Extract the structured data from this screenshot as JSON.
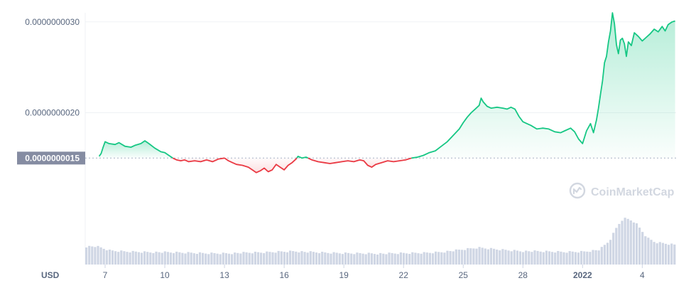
{
  "chart_data": {
    "type": "area",
    "currency_label": "USD",
    "watermark": "CoinMarketCap",
    "baseline_label": "0.0000000015",
    "baseline_value": 1.5e-09,
    "y_ticks": [
      {
        "label": "0.0000000030",
        "value": 3e-09
      },
      {
        "label": "0.0000000020",
        "value": 2e-09
      }
    ],
    "ylim": [
      5e-10,
      3.1e-09
    ],
    "x_ticks": [
      {
        "label": "7",
        "pos": 1.0
      },
      {
        "label": "10",
        "pos": 4.0
      },
      {
        "label": "13",
        "pos": 7.0
      },
      {
        "label": "16",
        "pos": 10.0
      },
      {
        "label": "19",
        "pos": 13.0
      },
      {
        "label": "22",
        "pos": 16.0
      },
      {
        "label": "25",
        "pos": 19.0
      },
      {
        "label": "28",
        "pos": 22.0
      },
      {
        "label": "2022",
        "pos": 25.0,
        "bold": true
      },
      {
        "label": "4",
        "pos": 28.0
      }
    ],
    "xlim": [
      0.0,
      29.7
    ],
    "colors": {
      "up": "#16c784",
      "down": "#ea3943",
      "volume": "#cfd6e4",
      "grid": "#eff2f5",
      "axis_text": "#58667e",
      "baseline_box": "#858ca2"
    },
    "series": [
      {
        "values": [
          [
            0.7,
            1.52e-09
          ],
          [
            0.8,
            1.55e-09
          ],
          [
            0.9,
            1.62e-09
          ],
          [
            1.0,
            1.68e-09
          ],
          [
            1.2,
            1.66e-09
          ],
          [
            1.5,
            1.65e-09
          ],
          [
            1.7,
            1.67e-09
          ],
          [
            2.0,
            1.63e-09
          ],
          [
            2.3,
            1.62e-09
          ],
          [
            2.5,
            1.64e-09
          ],
          [
            2.8,
            1.66e-09
          ],
          [
            3.0,
            1.69e-09
          ],
          [
            3.2,
            1.66e-09
          ],
          [
            3.5,
            1.61e-09
          ],
          [
            3.8,
            1.57e-09
          ],
          [
            4.0,
            1.56e-09
          ],
          [
            4.2,
            1.53e-09
          ],
          [
            4.4,
            1.5e-09
          ],
          [
            4.6,
            1.48e-09
          ],
          [
            4.8,
            1.47e-09
          ],
          [
            5.0,
            1.48e-09
          ],
          [
            5.2,
            1.46e-09
          ],
          [
            5.5,
            1.47e-09
          ],
          [
            5.8,
            1.46e-09
          ],
          [
            6.1,
            1.48e-09
          ],
          [
            6.4,
            1.46e-09
          ],
          [
            6.7,
            1.49e-09
          ],
          [
            7.0,
            1.5e-09
          ],
          [
            7.2,
            1.47e-09
          ],
          [
            7.4,
            1.45e-09
          ],
          [
            7.6,
            1.43e-09
          ],
          [
            7.9,
            1.42e-09
          ],
          [
            8.2,
            1.4e-09
          ],
          [
            8.4,
            1.37e-09
          ],
          [
            8.6,
            1.34e-09
          ],
          [
            8.8,
            1.36e-09
          ],
          [
            9.0,
            1.39e-09
          ],
          [
            9.2,
            1.35e-09
          ],
          [
            9.4,
            1.37e-09
          ],
          [
            9.6,
            1.43e-09
          ],
          [
            9.8,
            1.4e-09
          ],
          [
            10.0,
            1.37e-09
          ],
          [
            10.2,
            1.42e-09
          ],
          [
            10.4,
            1.45e-09
          ],
          [
            10.6,
            1.49e-09
          ],
          [
            10.7,
            1.52e-09
          ],
          [
            10.9,
            1.5e-09
          ],
          [
            11.1,
            1.51e-09
          ],
          [
            11.4,
            1.48e-09
          ],
          [
            11.7,
            1.46e-09
          ],
          [
            12.0,
            1.45e-09
          ],
          [
            12.3,
            1.44e-09
          ],
          [
            12.6,
            1.45e-09
          ],
          [
            12.9,
            1.46e-09
          ],
          [
            13.2,
            1.47e-09
          ],
          [
            13.5,
            1.46e-09
          ],
          [
            13.8,
            1.48e-09
          ],
          [
            14.0,
            1.47e-09
          ],
          [
            14.2,
            1.42e-09
          ],
          [
            14.4,
            1.4e-09
          ],
          [
            14.6,
            1.43e-09
          ],
          [
            14.9,
            1.45e-09
          ],
          [
            15.2,
            1.47e-09
          ],
          [
            15.5,
            1.46e-09
          ],
          [
            15.8,
            1.47e-09
          ],
          [
            16.1,
            1.48e-09
          ],
          [
            16.4,
            1.5e-09
          ],
          [
            16.7,
            1.51e-09
          ],
          [
            17.0,
            1.53e-09
          ],
          [
            17.3,
            1.56e-09
          ],
          [
            17.6,
            1.58e-09
          ],
          [
            17.9,
            1.63e-09
          ],
          [
            18.2,
            1.68e-09
          ],
          [
            18.5,
            1.75e-09
          ],
          [
            18.8,
            1.82e-09
          ],
          [
            19.0,
            1.89e-09
          ],
          [
            19.2,
            1.95e-09
          ],
          [
            19.4,
            2e-09
          ],
          [
            19.6,
            2.04e-09
          ],
          [
            19.8,
            2.08e-09
          ],
          [
            19.9,
            2.16e-09
          ],
          [
            20.0,
            2.12e-09
          ],
          [
            20.2,
            2.07e-09
          ],
          [
            20.4,
            2.05e-09
          ],
          [
            20.7,
            2.06e-09
          ],
          [
            21.0,
            2.05e-09
          ],
          [
            21.2,
            2.04e-09
          ],
          [
            21.4,
            2.06e-09
          ],
          [
            21.6,
            2.04e-09
          ],
          [
            21.8,
            1.96e-09
          ],
          [
            22.0,
            1.9e-09
          ],
          [
            22.2,
            1.88e-09
          ],
          [
            22.4,
            1.86e-09
          ],
          [
            22.7,
            1.82e-09
          ],
          [
            23.0,
            1.83e-09
          ],
          [
            23.3,
            1.82e-09
          ],
          [
            23.6,
            1.79e-09
          ],
          [
            23.9,
            1.78e-09
          ],
          [
            24.1,
            1.8e-09
          ],
          [
            24.4,
            1.83e-09
          ],
          [
            24.6,
            1.79e-09
          ],
          [
            24.8,
            1.71e-09
          ],
          [
            25.0,
            1.66e-09
          ],
          [
            25.2,
            1.8e-09
          ],
          [
            25.4,
            1.88e-09
          ],
          [
            25.55,
            1.78e-09
          ],
          [
            25.7,
            1.92e-09
          ],
          [
            25.8,
            2.05e-09
          ],
          [
            25.9,
            2.2e-09
          ],
          [
            26.0,
            2.35e-09
          ],
          [
            26.1,
            2.55e-09
          ],
          [
            26.2,
            2.62e-09
          ],
          [
            26.3,
            2.78e-09
          ],
          [
            26.4,
            2.9e-09
          ],
          [
            26.5,
            3.1e-09
          ],
          [
            26.6,
            2.98e-09
          ],
          [
            26.7,
            2.75e-09
          ],
          [
            26.8,
            2.65e-09
          ],
          [
            26.9,
            2.8e-09
          ],
          [
            27.0,
            2.82e-09
          ],
          [
            27.1,
            2.76e-09
          ],
          [
            27.2,
            2.62e-09
          ],
          [
            27.3,
            2.78e-09
          ],
          [
            27.45,
            2.74e-09
          ],
          [
            27.6,
            2.88e-09
          ],
          [
            27.8,
            2.84e-09
          ],
          [
            28.0,
            2.79e-09
          ],
          [
            28.2,
            2.83e-09
          ],
          [
            28.4,
            2.87e-09
          ],
          [
            28.6,
            2.92e-09
          ],
          [
            28.8,
            2.89e-09
          ],
          [
            29.0,
            2.95e-09
          ],
          [
            29.15,
            2.9e-09
          ],
          [
            29.3,
            2.97e-09
          ],
          [
            29.5,
            3e-09
          ],
          [
            29.65,
            3.01e-09
          ]
        ]
      }
    ],
    "volume": [
      [
        0.5,
        0.32
      ],
      [
        1.2,
        0.22
      ],
      [
        2.0,
        0.2
      ],
      [
        3.0,
        0.19
      ],
      [
        4.0,
        0.18
      ],
      [
        5.0,
        0.17
      ],
      [
        6.0,
        0.16
      ],
      [
        7.0,
        0.16
      ],
      [
        8.0,
        0.17
      ],
      [
        9.0,
        0.18
      ],
      [
        9.8,
        0.2
      ],
      [
        10.5,
        0.21
      ],
      [
        11.0,
        0.19
      ],
      [
        12.0,
        0.17
      ],
      [
        13.0,
        0.16
      ],
      [
        14.0,
        0.16
      ],
      [
        15.0,
        0.15
      ],
      [
        16.0,
        0.16
      ],
      [
        17.0,
        0.17
      ],
      [
        17.8,
        0.19
      ],
      [
        18.5,
        0.22
      ],
      [
        19.2,
        0.26
      ],
      [
        19.7,
        0.29
      ],
      [
        20.2,
        0.27
      ],
      [
        21.0,
        0.24
      ],
      [
        22.0,
        0.21
      ],
      [
        23.0,
        0.2
      ],
      [
        24.0,
        0.19
      ],
      [
        25.0,
        0.2
      ],
      [
        25.8,
        0.24
      ],
      [
        26.3,
        0.45
      ],
      [
        26.7,
        0.8
      ],
      [
        27.0,
        0.98
      ],
      [
        27.3,
        0.95
      ],
      [
        27.6,
        0.88
      ],
      [
        27.9,
        0.7
      ],
      [
        28.2,
        0.52
      ],
      [
        28.6,
        0.42
      ],
      [
        29.0,
        0.4
      ],
      [
        29.65,
        0.36
      ]
    ]
  }
}
